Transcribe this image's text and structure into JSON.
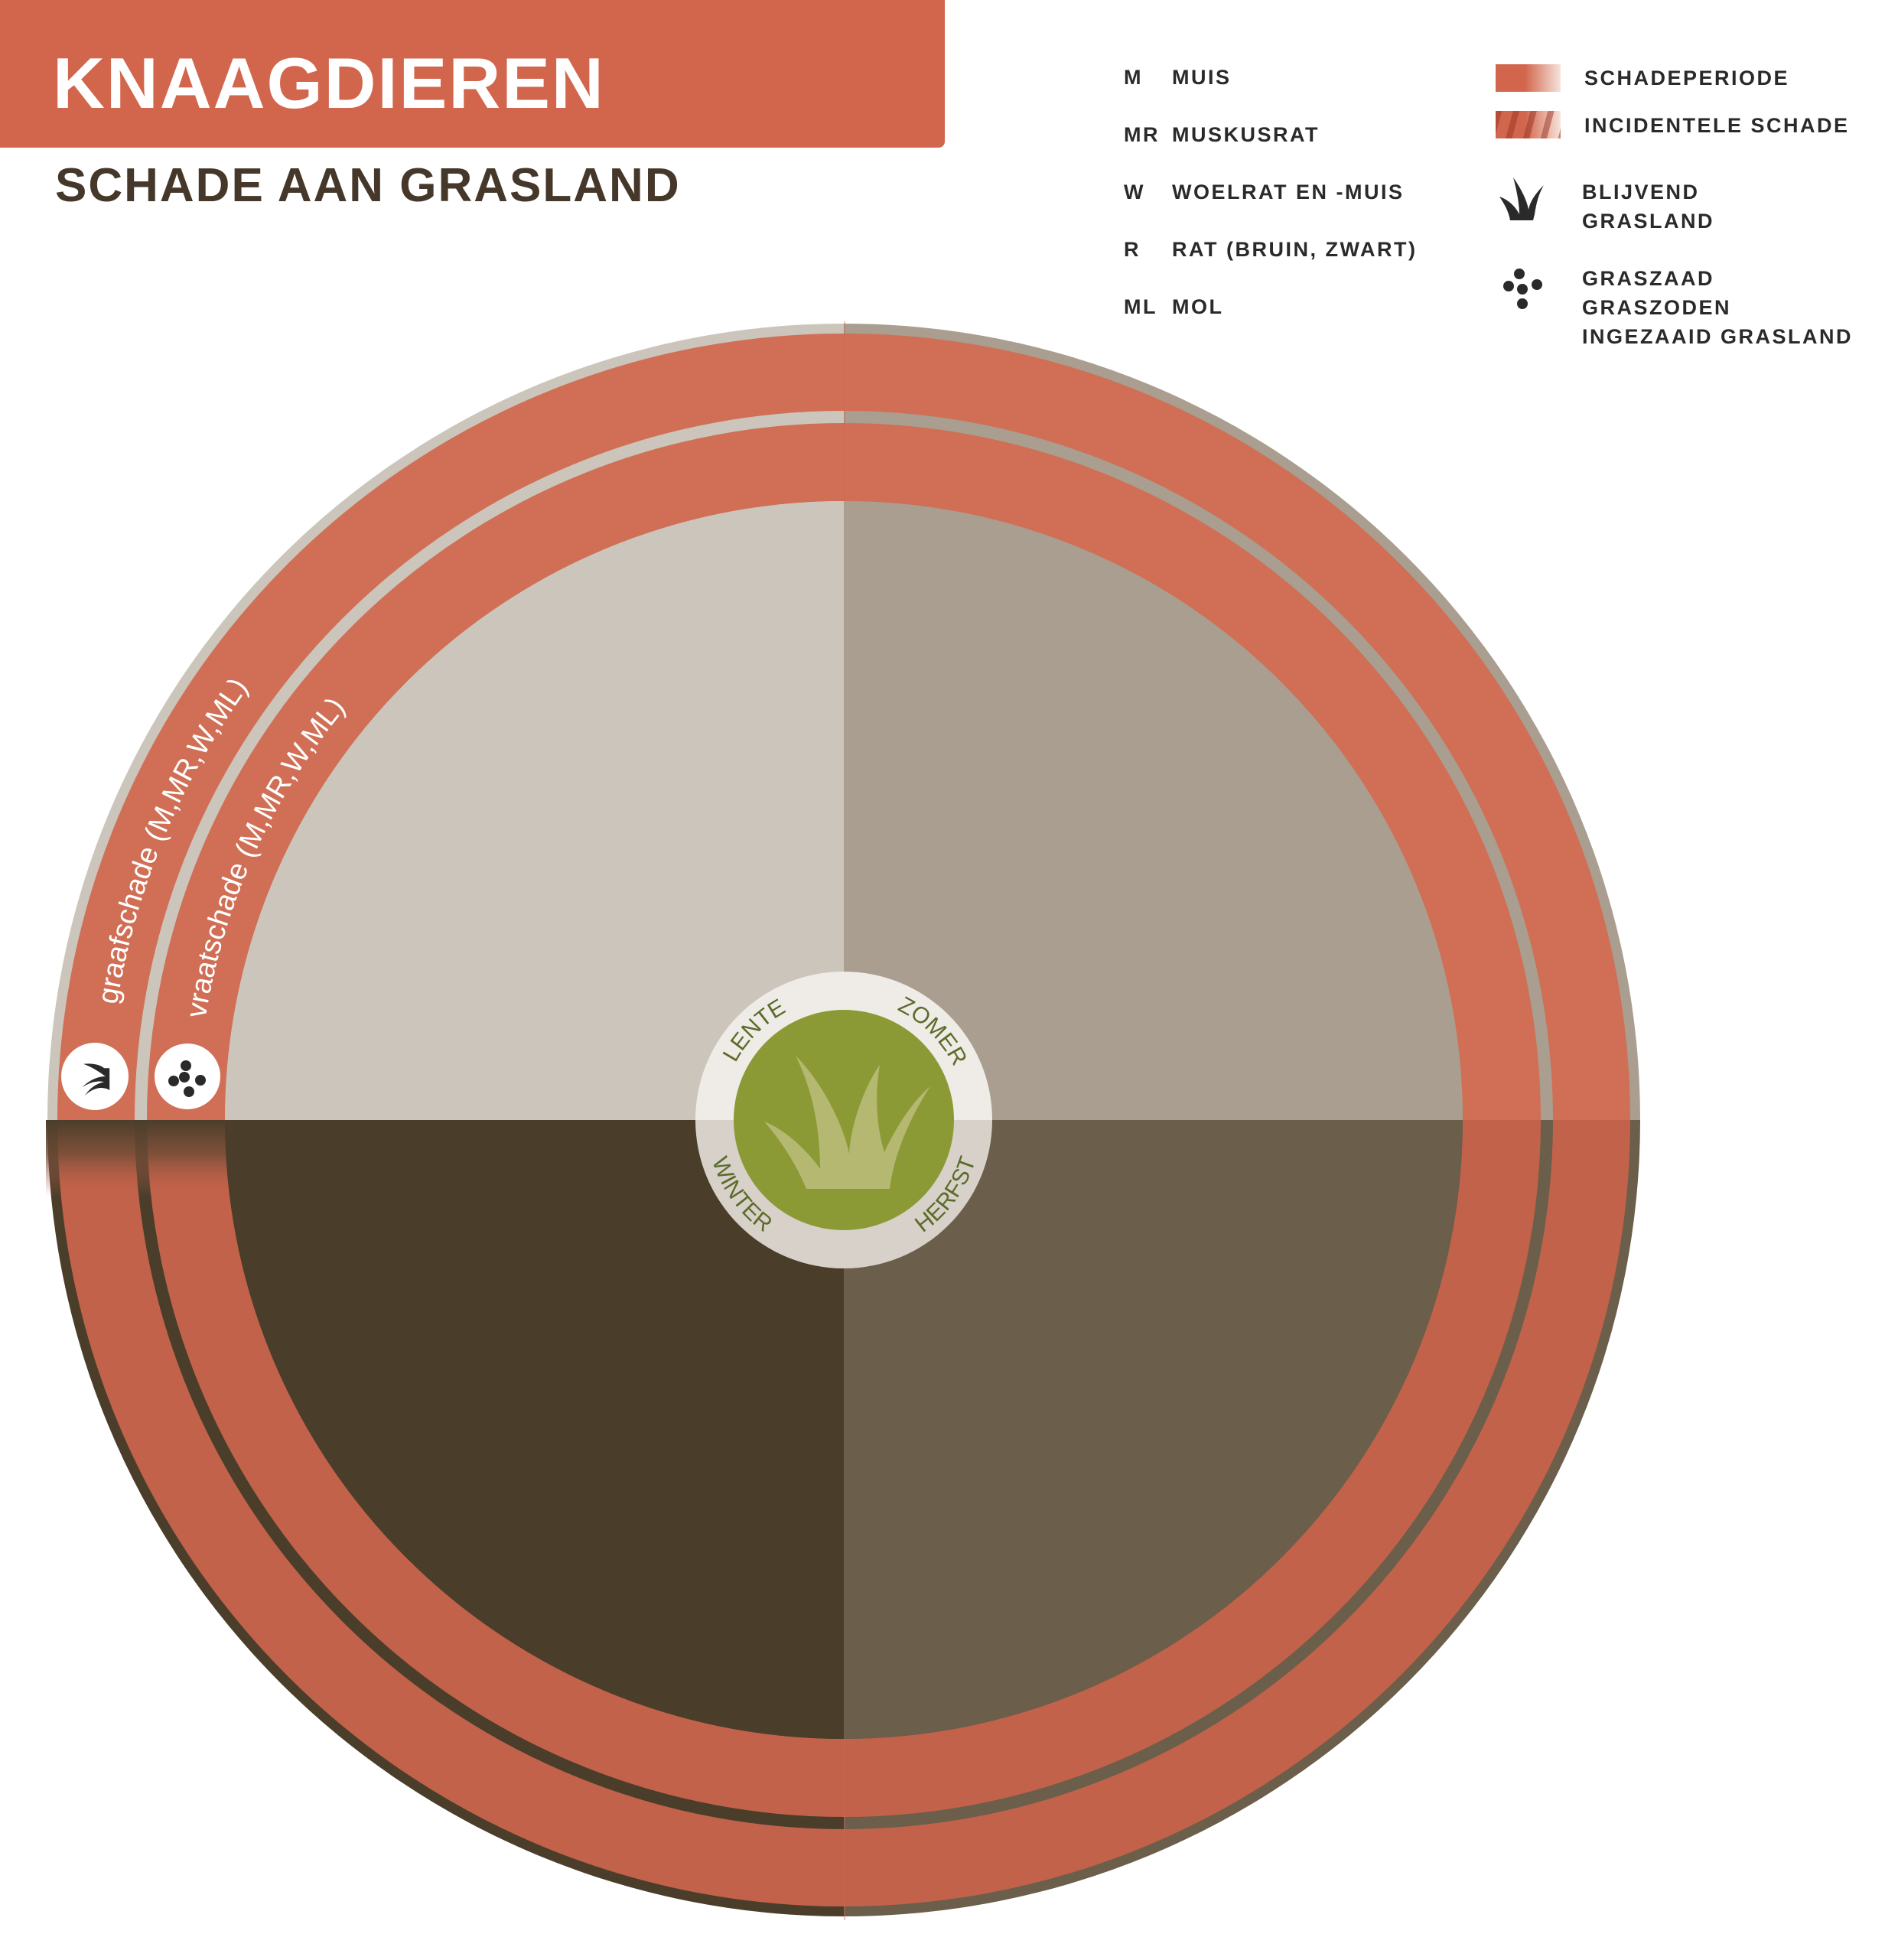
{
  "header": {
    "title": "KNAAGDIEREN",
    "subtitle": "SCHADE AAN GRASLAND"
  },
  "legend_species": [
    {
      "abbr": "M",
      "name": "MUIS"
    },
    {
      "abbr": "MR",
      "name": "MUSKUSRAT"
    },
    {
      "abbr": "W",
      "name": "WOELRAT EN -MUIS"
    },
    {
      "abbr": "R",
      "name": "RAT (BRUIN, ZWART)"
    },
    {
      "abbr": "ML",
      "name": "MOL"
    }
  ],
  "legend_symbols": {
    "damage_period": "SCHADEPERIODE",
    "incidental_damage": "INCIDENTELE SCHADE",
    "permanent_grassland_line1": "BLIJVEND",
    "permanent_grassland_line2": "GRASLAND",
    "seed_line1": "GRASZAAD",
    "seed_line2": "GRASZODEN",
    "seed_line3": "INGEZAAID GRASLAND"
  },
  "diagram": {
    "rings": [
      {
        "label": "graafschade (M,MR,W,ML)",
        "icon": "grass-icon",
        "damage_period": "all year"
      },
      {
        "label": "vraatschade (M,MR,W,ML)",
        "icon": "seeds-icon",
        "damage_period": "all year"
      }
    ],
    "seasons": {
      "spring": "LENTE",
      "summer": "ZOMER",
      "winter": "WINTER",
      "autumn": "HERFST"
    }
  },
  "colors": {
    "accent": "#d2664c",
    "damage_top": "#d06f55",
    "damage_bottom": "#c3624a",
    "spring": "#cbc5bb",
    "summer": "#a99e8f",
    "autumn": "#6b5e4a",
    "winter": "#4a3e2b",
    "center_green": "#8c9a35",
    "season_text": "#5c6b2a"
  }
}
